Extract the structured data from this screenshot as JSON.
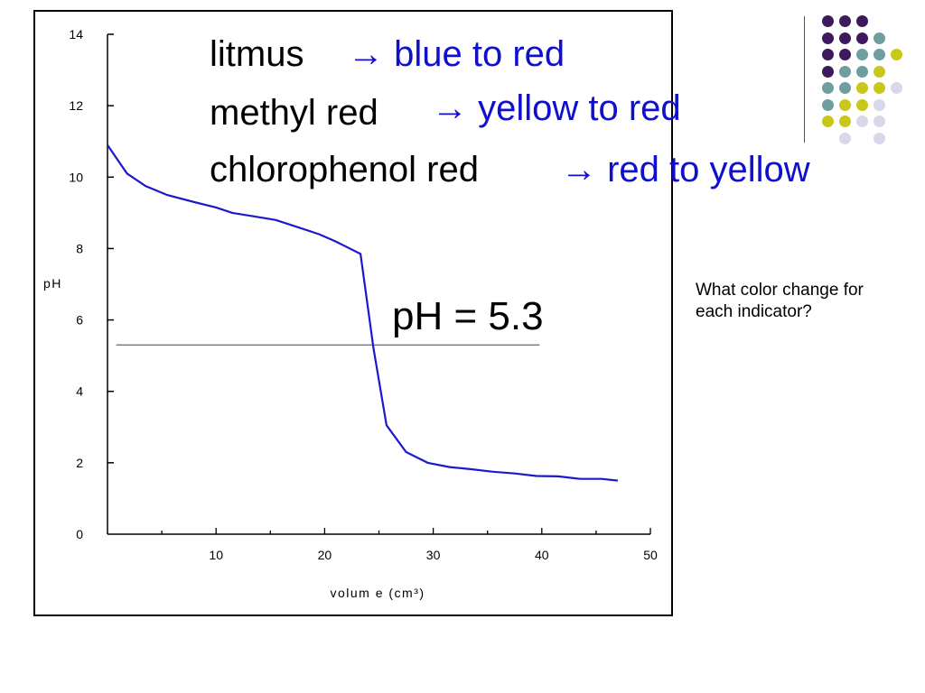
{
  "chart_data": {
    "type": "line",
    "xlabel": "volum e (cm³)",
    "ylabel": "pH",
    "xlim": [
      0,
      50
    ],
    "ylim": [
      0,
      14
    ],
    "x_ticks": [
      10,
      20,
      30,
      40,
      50
    ],
    "y_ticks": [
      0,
      2,
      4,
      6,
      8,
      10,
      12,
      14
    ],
    "grid": false,
    "series": [
      {
        "color": "#1a1acc",
        "x": [
          0,
          1.8,
          3.5,
          5.5,
          8,
          10,
          11.5,
          13.5,
          15.5,
          17.5,
          19.5,
          21,
          23.3,
          24.5,
          25.7,
          27.5,
          29.5,
          31.5,
          33.5,
          35.5,
          37.5,
          39.5,
          41.5,
          43.5,
          45.5,
          47
        ],
        "y": [
          10.9,
          10.1,
          9.75,
          9.5,
          9.3,
          9.15,
          9.0,
          8.9,
          8.8,
          8.6,
          8.4,
          8.2,
          7.85,
          5.2,
          3.05,
          2.3,
          2.0,
          1.88,
          1.82,
          1.75,
          1.7,
          1.63,
          1.62,
          1.55,
          1.55,
          1.5
        ]
      }
    ],
    "reference_line": {
      "y": 5.3,
      "x_range": [
        0.8,
        39.8
      ],
      "color": "#777777"
    },
    "annotation": "pH = 5.3"
  },
  "indicators": [
    {
      "name": "litmus",
      "change": "→ blue to red"
    },
    {
      "name": "methyl red",
      "change": "→ yellow to red"
    },
    {
      "name": "chlorophenol red",
      "change": "→ red to yellow"
    }
  ],
  "question": "What color change for each indicator?",
  "decor": {
    "colors": {
      "purple": "#3d1a5e",
      "teal": "#6e9ea0",
      "yellow": "#c8c81a",
      "lavender": "#d8d8ea"
    },
    "dot_rows": [
      [
        "purple",
        "purple",
        "purple",
        "",
        ""
      ],
      [
        "purple",
        "purple",
        "purple",
        "teal",
        ""
      ],
      [
        "purple",
        "purple",
        "teal",
        "teal",
        "yellow"
      ],
      [
        "purple",
        "teal",
        "teal",
        "yellow",
        ""
      ],
      [
        "teal",
        "teal",
        "yellow",
        "yellow",
        "lavender"
      ],
      [
        "teal",
        "yellow",
        "yellow",
        "lavender",
        ""
      ],
      [
        "yellow",
        "yellow",
        "lavender",
        "lavender",
        ""
      ],
      [
        "",
        "lavender",
        "",
        "lavender",
        ""
      ]
    ]
  }
}
